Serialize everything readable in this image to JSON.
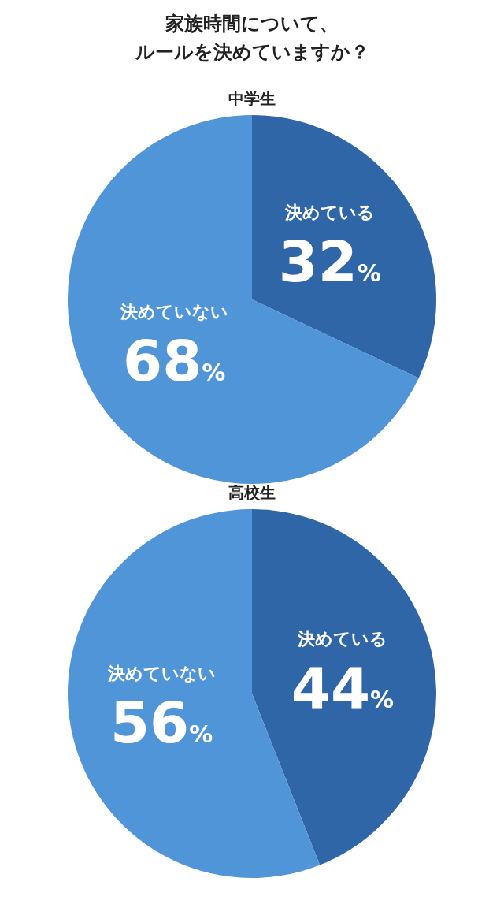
{
  "chart_data": [
    {
      "type": "pie",
      "title": "家族時間について、ルールを決めていますか？",
      "subtitle": "中学生",
      "categories": [
        "決めている",
        "決めていない"
      ],
      "values": [
        32,
        68
      ],
      "colors": [
        "#2e66a8",
        "#4f95d8"
      ],
      "value_labels": [
        "32%",
        "68%"
      ]
    },
    {
      "type": "pie",
      "subtitle": "高校生",
      "categories": [
        "決めている",
        "決めていない"
      ],
      "values": [
        44,
        56
      ],
      "colors": [
        "#2e66a8",
        "#4f95d8"
      ],
      "value_labels": [
        "44%",
        "56%"
      ]
    }
  ]
}
